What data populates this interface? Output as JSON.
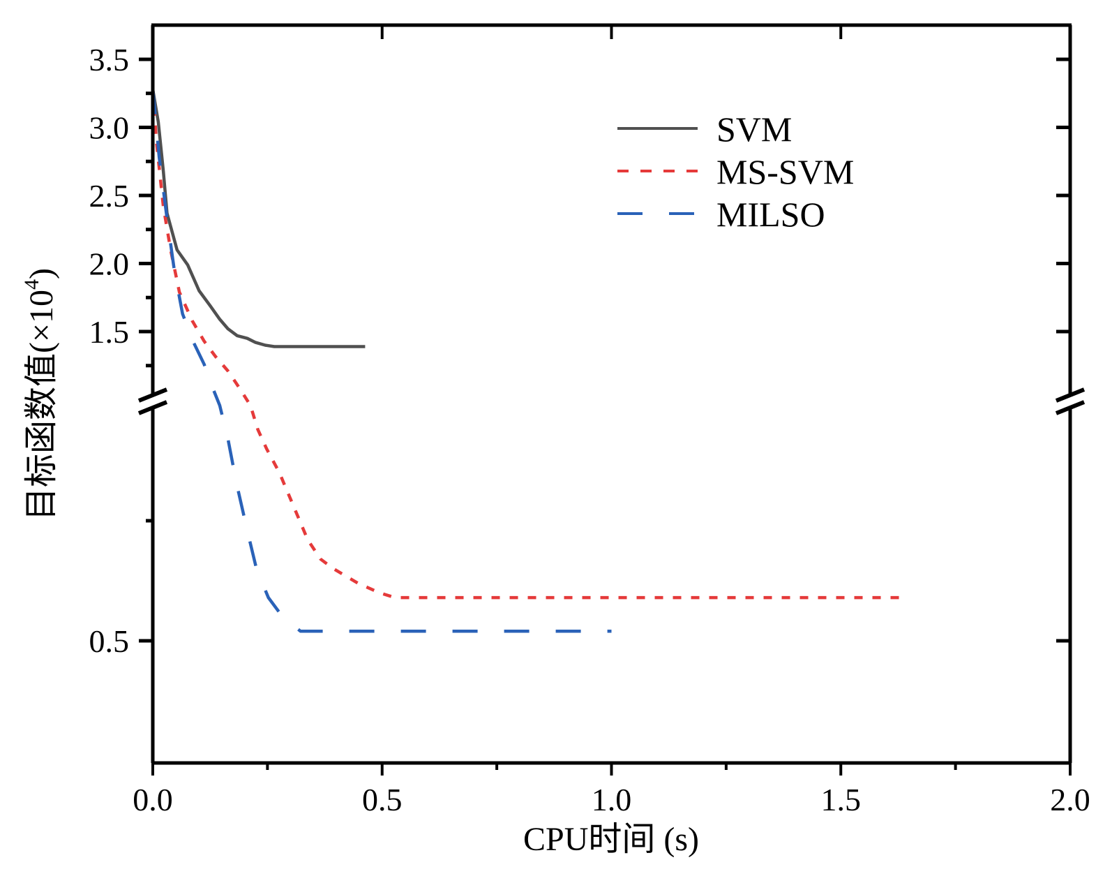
{
  "chart_data": {
    "type": "line",
    "title": "",
    "xlabel": "CPU时间 (s)",
    "ylabel": "目标函数值(×10⁴)",
    "ylabel_parts": {
      "main": "目标函数值(",
      "times": "×",
      "base": "10",
      "exp": "4",
      "close": ")"
    },
    "xlim": [
      0,
      2.0
    ],
    "x_ticks": [
      0.0,
      0.5,
      1.0,
      1.5,
      2.0
    ],
    "x_tick_labels": [
      "0.0",
      "0.5",
      "1.0",
      "1.5",
      "2.0"
    ],
    "x_minor_ticks": [
      0.25,
      0.75,
      1.25,
      1.75
    ],
    "y_axis_break": true,
    "y_segments": [
      {
        "name": "upper",
        "ylim": [
          1.05,
          3.75
        ],
        "major_ticks": [
          1.5,
          2.0,
          2.5,
          3.0,
          3.5
        ],
        "major_tick_labels": [
          "1.5",
          "2.0",
          "2.5",
          "3.0",
          "3.5"
        ],
        "minor_ticks": [
          1.25,
          1.75,
          2.25,
          2.75,
          3.25
        ]
      },
      {
        "name": "lower",
        "ylim": [
          0.25,
          1.0
        ],
        "major_ticks": [
          0.5
        ],
        "major_tick_labels": [
          "0.5"
        ],
        "minor_ticks": [
          0.75
        ]
      }
    ],
    "grid": false,
    "legend_position": "top-right",
    "series": [
      {
        "name": "SVM",
        "color": "#505050",
        "style": "solid",
        "x": [
          0,
          0.012,
          0.023,
          0.031,
          0.053,
          0.076,
          0.101,
          0.125,
          0.146,
          0.164,
          0.184,
          0.206,
          0.224,
          0.245,
          0.265,
          0.463
        ],
        "y": [
          3.28,
          3.04,
          2.68,
          2.37,
          2.1,
          1.99,
          1.8,
          1.69,
          1.59,
          1.52,
          1.47,
          1.45,
          1.42,
          1.4,
          1.39,
          1.39
        ]
      },
      {
        "name": "MS-SVM",
        "color": "#e53a3a",
        "style": "dotted",
        "x": [
          0,
          0.008,
          0.023,
          0.039,
          0.058,
          0.086,
          0.112,
          0.136,
          0.164,
          0.19,
          0.213,
          0.229,
          0.248,
          0.276,
          0.307,
          0.338,
          0.366,
          0.394,
          0.447,
          0.494,
          0.528,
          1.631
        ],
        "y": [
          3.28,
          2.89,
          2.42,
          2.1,
          1.79,
          1.58,
          1.43,
          1.32,
          1.21,
          1.08,
          0.99,
          0.94,
          0.9,
          0.85,
          0.78,
          0.71,
          0.67,
          0.65,
          0.62,
          0.6,
          0.59,
          0.59
        ]
      },
      {
        "name": "MILSO",
        "color": "#2a62b8",
        "style": "dashed",
        "x": [
          0,
          0.014,
          0.03,
          0.047,
          0.065,
          0.089,
          0.112,
          0.129,
          0.146,
          0.164,
          0.182,
          0.206,
          0.226,
          0.252,
          0.283,
          0.322,
          0.385,
          1.0
        ],
        "y": [
          3.28,
          2.78,
          2.36,
          1.95,
          1.63,
          1.42,
          1.26,
          1.1,
          0.99,
          0.92,
          0.83,
          0.73,
          0.65,
          0.59,
          0.55,
          0.52,
          0.52,
          0.52
        ]
      }
    ]
  }
}
